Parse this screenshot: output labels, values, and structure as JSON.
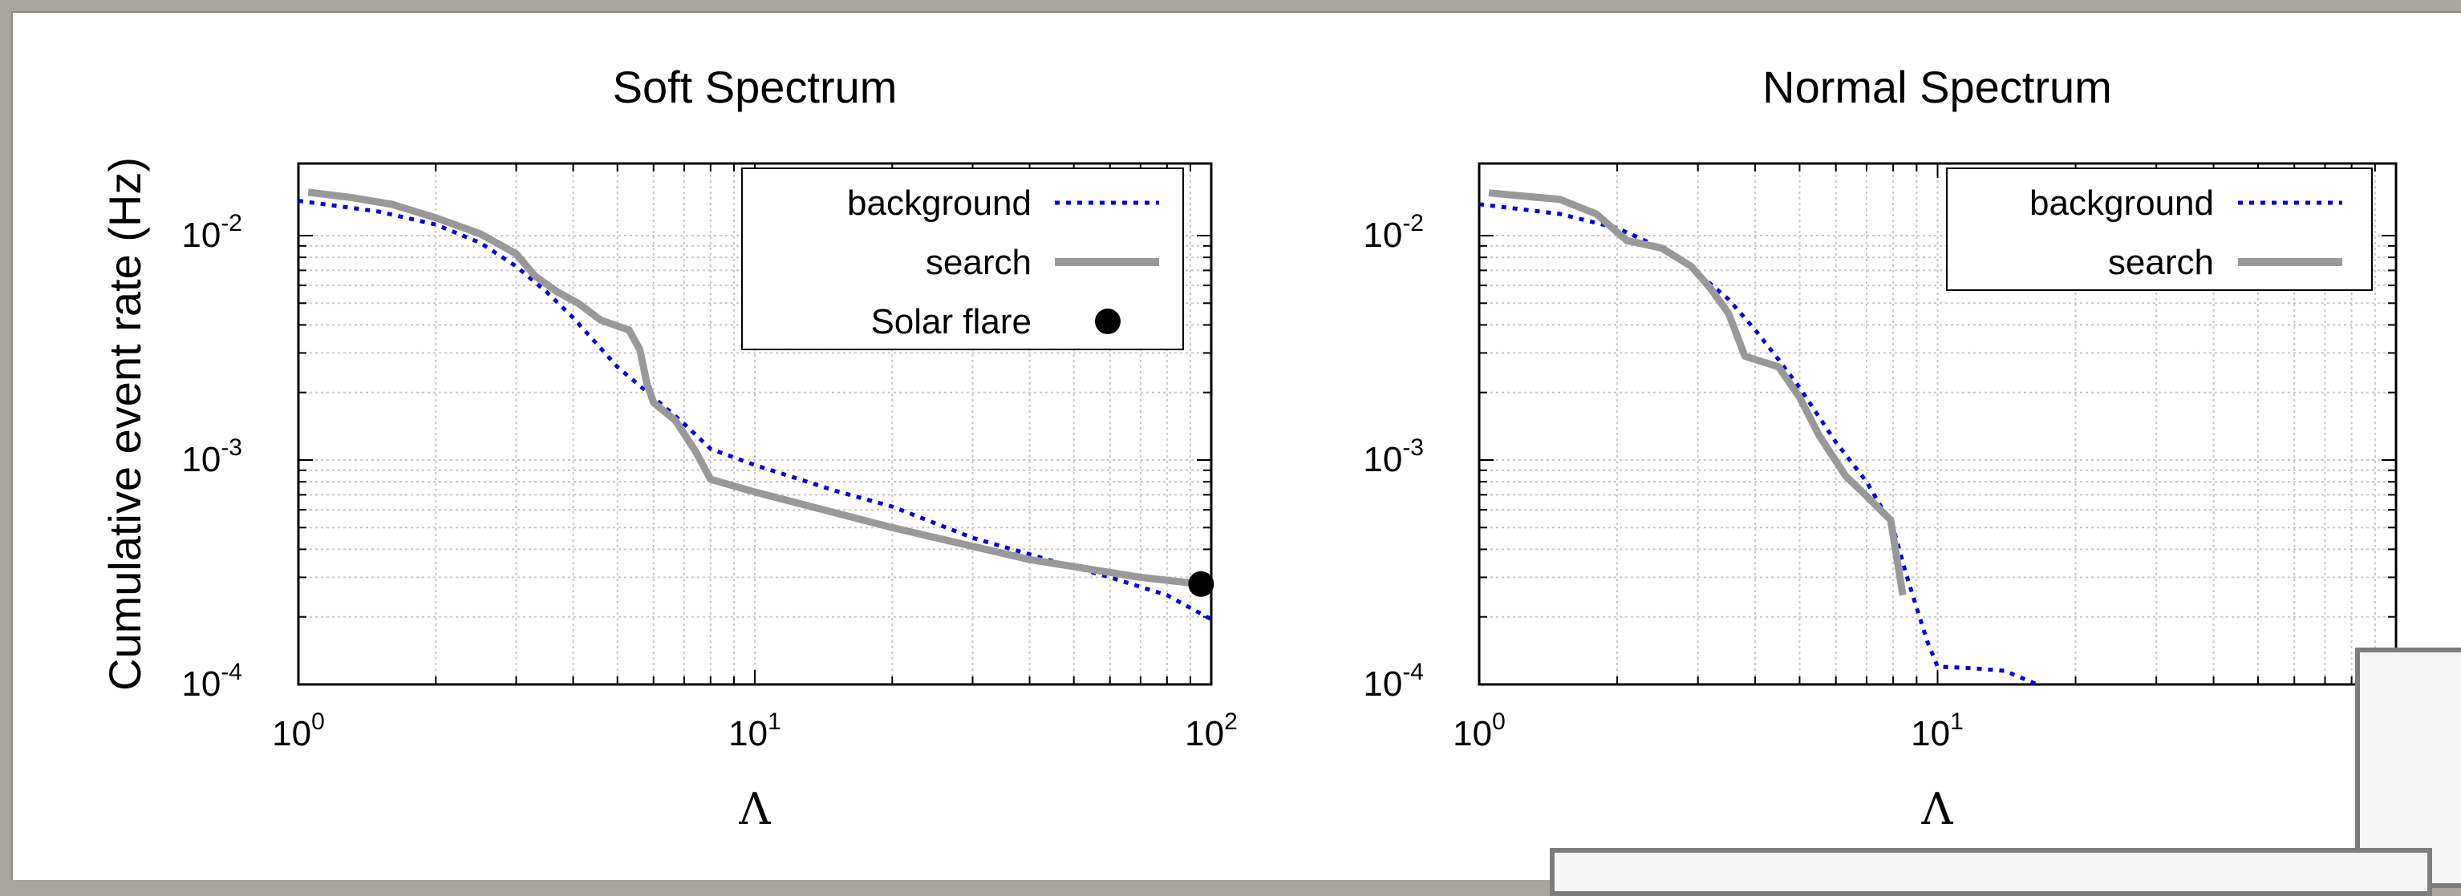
{
  "chart_data": [
    {
      "type": "line",
      "title": "Soft Spectrum",
      "xlabel": "Λ",
      "ylabel": "Cumulative event rate (Hz)",
      "xscale": "log",
      "yscale": "log",
      "xlim": [
        1,
        100
      ],
      "ylim": [
        0.0001,
        0.02
      ],
      "grid": true,
      "legend": "top-right",
      "x_ticks": [
        {
          "base": "10",
          "exp": "0"
        },
        {
          "base": "10",
          "exp": "1"
        },
        {
          "base": "10",
          "exp": "2"
        }
      ],
      "y_ticks": [
        {
          "base": "10",
          "exp": "-2"
        },
        {
          "base": "10",
          "exp": "-3"
        },
        {
          "base": "10",
          "exp": "-4"
        }
      ],
      "series": [
        {
          "name": "background",
          "style": "dotted",
          "color": "#0000e0",
          "x": [
            1.0,
            1.5,
            2.0,
            2.5,
            3.0,
            3.5,
            4.0,
            4.5,
            5.0,
            6.0,
            7.0,
            8.0,
            10.0,
            15.0,
            20.0,
            30.0,
            40.0,
            60.0,
            80.0,
            100.0
          ],
          "y": [
            0.0143,
            0.0128,
            0.0112,
            0.0093,
            0.0073,
            0.0056,
            0.0043,
            0.0033,
            0.0026,
            0.0019,
            0.00145,
            0.00112,
            0.00095,
            0.00073,
            0.00062,
            0.00045,
            0.00038,
            0.0003,
            0.00025,
            0.000195
          ]
        },
        {
          "name": "search",
          "style": "solid",
          "color": "#999999",
          "x": [
            1.05,
            1.3,
            1.6,
            2.0,
            2.5,
            3.0,
            3.3,
            3.7,
            4.1,
            4.6,
            5.3,
            5.6,
            5.8,
            6.0,
            6.7,
            7.4,
            8.0,
            10.0,
            20.0,
            40.0,
            70.0,
            95.0
          ],
          "y": [
            0.0156,
            0.0148,
            0.0138,
            0.012,
            0.0102,
            0.0083,
            0.0066,
            0.0056,
            0.005,
            0.0042,
            0.0038,
            0.0031,
            0.0022,
            0.0018,
            0.0015,
            0.0011,
            0.00082,
            0.00072,
            0.0005,
            0.00036,
            0.0003,
            0.00028
          ]
        },
        {
          "name": "Solar flare",
          "style": "marker",
          "color": "#000000",
          "x": [
            95.0
          ],
          "y": [
            0.00028
          ]
        }
      ]
    },
    {
      "type": "line",
      "title": "Normal Spectrum",
      "xlabel": "Λ",
      "ylabel": "",
      "xscale": "log",
      "yscale": "log",
      "xlim": [
        1,
        100
      ],
      "ylim": [
        0.0001,
        0.02
      ],
      "grid": true,
      "legend": "top-right",
      "x_ticks": [
        {
          "base": "10",
          "exp": "0"
        },
        {
          "base": "10",
          "exp": "1"
        }
      ],
      "y_ticks": [
        {
          "base": "10",
          "exp": "-2"
        },
        {
          "base": "10",
          "exp": "-3"
        },
        {
          "base": "10",
          "exp": "-4"
        }
      ],
      "series": [
        {
          "name": "background",
          "style": "dotted",
          "color": "#0000e0",
          "x": [
            1.0,
            1.5,
            2.0,
            2.5,
            3.0,
            3.5,
            4.0,
            4.5,
            5.0,
            6.0,
            7.0,
            8.0,
            8.5,
            9.0,
            9.5,
            10.0,
            12.0,
            14.0,
            16.5
          ],
          "y": [
            0.0138,
            0.0125,
            0.0108,
            0.0088,
            0.0068,
            0.0052,
            0.0038,
            0.0028,
            0.0021,
            0.0012,
            0.0008,
            0.0005,
            0.00032,
            0.00022,
            0.000155,
            0.00012,
            0.000118,
            0.000115,
            0.0001
          ]
        },
        {
          "name": "search",
          "style": "solid",
          "color": "#999999",
          "x": [
            1.05,
            1.5,
            1.8,
            2.1,
            2.5,
            2.9,
            3.2,
            3.5,
            3.8,
            4.5,
            5.0,
            5.5,
            5.8,
            6.3,
            7.0,
            7.9,
            8.4
          ],
          "y": [
            0.0155,
            0.0145,
            0.0125,
            0.0095,
            0.0088,
            0.0073,
            0.0058,
            0.0045,
            0.0029,
            0.0026,
            0.0019,
            0.0013,
            0.0011,
            0.00085,
            0.00069,
            0.00054,
            0.00025
          ]
        }
      ]
    }
  ],
  "legend_labels": {
    "left": [
      "background",
      "search",
      "Solar flare"
    ],
    "right": [
      "background",
      "search"
    ]
  }
}
